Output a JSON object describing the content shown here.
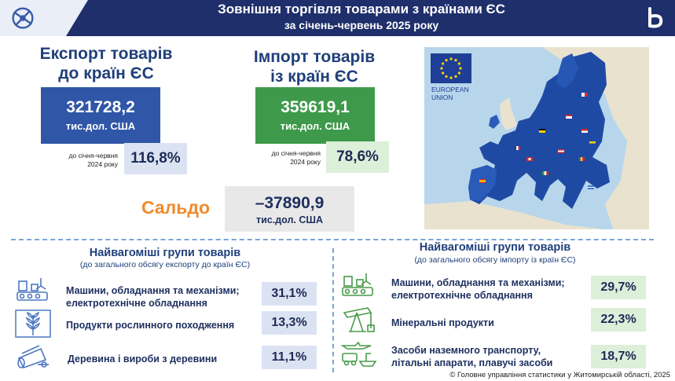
{
  "header": {
    "title": "Зовнішня торгівля товарами з країнами ЄС",
    "subtitle": "за січень-червень 2025 року"
  },
  "export": {
    "heading_line1": "Експорт товарів",
    "heading_line2": "до країн ЄС",
    "value": "321728,2",
    "unit": "тис.дол. США",
    "compare_label_line1": "до січня-червня",
    "compare_label_line2": "2024 року",
    "compare_value": "116,8%"
  },
  "import": {
    "heading_line1": "Імпорт товарів",
    "heading_line2": "із країн ЄС",
    "value": "359619,1",
    "unit": "тис.дол. США",
    "compare_label_line1": "до січня-червня",
    "compare_label_line2": "2024 року",
    "compare_value": "78,6%"
  },
  "saldo": {
    "label": "Сальдо",
    "value": "–37890,9",
    "unit": "тис.дол. США"
  },
  "map": {
    "emblem_line1": "EUROPEAN",
    "emblem_line2": "UNION"
  },
  "export_groups": {
    "title": "Найвагоміші групи товарів",
    "subtitle": "(до загального обсягу експорту до країн ЄС)",
    "items": [
      {
        "label_line1": "Машини, обладнання та механізми;",
        "label_line2": "електротехнічне обладнання",
        "value": "31,1%",
        "icon": "factory-machinery-icon"
      },
      {
        "label_line1": "Продукти рослинного походження",
        "label_line2": "",
        "value": "13,3%",
        "icon": "wheat-icon"
      },
      {
        "label_line1": "Деревина і вироби з деревини",
        "label_line2": "",
        "value": "11,1%",
        "icon": "logs-icon"
      }
    ]
  },
  "import_groups": {
    "title": "Найвагоміші групи товарів",
    "subtitle": "(до загального обсягу імпорту із країн ЄС)",
    "items": [
      {
        "label_line1": "Машини, обладнання та механізми;",
        "label_line2": "електротехнічне обладнання",
        "value": "29,7%",
        "icon": "factory-machinery-icon"
      },
      {
        "label_line1": "Мінеральні продукти",
        "label_line2": "",
        "value": "22,3%",
        "icon": "oil-pump-icon"
      },
      {
        "label_line1": "Засоби наземного транспорту,",
        "label_line2": "літальні апарати, плавучі засоби",
        "value": "18,7%",
        "icon": "transport-icon"
      }
    ]
  },
  "footer": {
    "copyright": "© Головне управління статистики у Житомирській області, 2025"
  },
  "colors": {
    "header_bg": "#1f2f6b",
    "export_box": "#2f56a7",
    "import_box": "#3e9a4a",
    "saldo_label": "#f08a2c",
    "export_pct_bg": "#dbe3f3",
    "import_pct_bg": "#dcefd9"
  }
}
